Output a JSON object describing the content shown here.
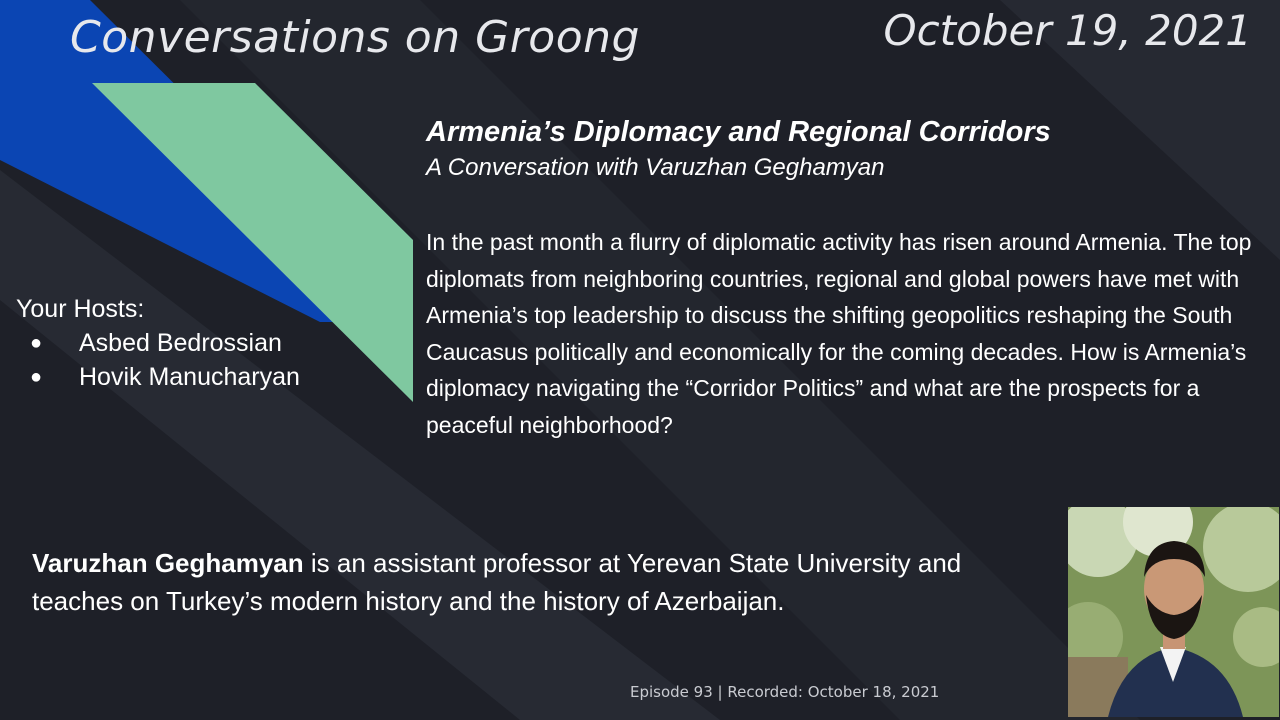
{
  "header": {
    "show_title": "Conversations on Groong",
    "date": "October 19, 2021"
  },
  "episode": {
    "title": "Armenia’s Diplomacy and Regional Corridors",
    "subtitle": "A Conversation with Varuzhan Geghamyan",
    "description": "In the past month a flurry of diplomatic activity has risen around Armenia. The top diplomats from neighboring countries, regional and global powers have met with Armenia’s top leadership to discuss the shifting geopolitics reshaping the South Caucasus politically and economically for the coming decades. How is Armenia’s diplomacy navigating the “Corridor Politics” and what are the prospects for a peaceful neighborhood?"
  },
  "hosts": {
    "label": "Your Hosts:",
    "bullet": "●",
    "names": [
      "Asbed Bedrossian",
      "Hovik Manucharyan"
    ]
  },
  "guest": {
    "name": "Varuzhan Geghamyan",
    "bio": " is an assistant professor at Yerevan State University and teaches on Turkey’s modern history and the history of Azerbaijan."
  },
  "footer": {
    "episode_info": "Episode 93 | Recorded: October 18, 2021"
  },
  "colors": {
    "background": "#1e2028",
    "blue_stripe": "#0b45b3",
    "green_stripe": "#7fc8a0",
    "text": "#ffffff"
  }
}
